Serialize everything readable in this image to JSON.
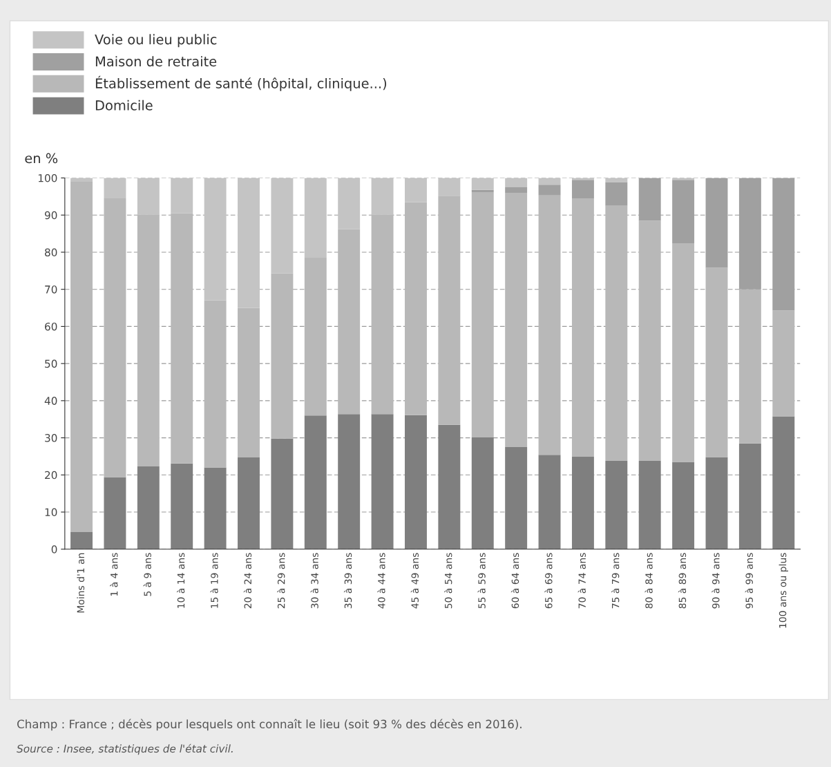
{
  "chart_data": {
    "type": "bar",
    "stacked": true,
    "ylabel": "en %",
    "categories": [
      "Moins d'1 an",
      "1 à 4 ans",
      "5 à 9 ans",
      "10 à 14 ans",
      "15 à 19 ans",
      "20 à 24 ans",
      "25 à 29 ans",
      "30 à 34 ans",
      "35 à 39 ans",
      "40 à 44 ans",
      "45 à 49 ans",
      "50 à 54 ans",
      "55 à 59 ans",
      "60 à 64 ans",
      "65 à 69 ans",
      "70 à 74 ans",
      "75 à 79 ans",
      "80 à 84 ans",
      "85 à 89 ans",
      "90 à 94 ans",
      "95 à 99 ans",
      "100 ans ou plus"
    ],
    "series": [
      {
        "name": "Domicile",
        "color": "#7f7f7f",
        "values": [
          4.6,
          19.4,
          22.3,
          23.1,
          22,
          24.7,
          29.8,
          36,
          36.4,
          36.4,
          36.1,
          33.5,
          30.1,
          27.5,
          25.4,
          24.9,
          23.8,
          23.8,
          23.5,
          24.8,
          28.5,
          35.8
        ]
      },
      {
        "name": "Établissement de santé (hôpital, clinique...)",
        "color": "#b8b8b8",
        "values": [
          94.4,
          75.1,
          67.9,
          67.4,
          45,
          40.3,
          44.5,
          42.5,
          49.8,
          53.8,
          57.4,
          61.7,
          66.1,
          68.5,
          69.9,
          69.6,
          68.7,
          64.7,
          58.9,
          51,
          41.5,
          28.5
        ]
      },
      {
        "name": "Maison de retraite",
        "color": "#a0a0a0",
        "values": [
          0,
          0,
          0,
          0,
          0,
          0,
          0,
          0,
          0,
          0,
          0,
          0,
          0.6,
          1.5,
          2.9,
          5,
          6.4,
          11.5,
          17.1,
          24.2,
          30,
          35.7
        ]
      },
      {
        "name": "Voie ou lieu public",
        "color": "#c4c4c4",
        "values": [
          1,
          5.5,
          9.8,
          9.5,
          33,
          35,
          25.7,
          21.5,
          13.8,
          9.8,
          6.5,
          4.8,
          3.2,
          2.5,
          1.8,
          0.5,
          1.1,
          0,
          0.5,
          0,
          0,
          0
        ]
      }
    ],
    "ylim": [
      0,
      100
    ],
    "yticks": [
      0,
      10,
      20,
      30,
      40,
      50,
      60,
      70,
      80,
      90,
      100
    ],
    "grid": "y",
    "legend": "top left",
    "annotations": [
      "Champ : France ; décès pour lesquels ont connaît le lieu (soit 93 % des décès en 2016).",
      "Source : Insee, statistiques de l'état civil."
    ]
  }
}
